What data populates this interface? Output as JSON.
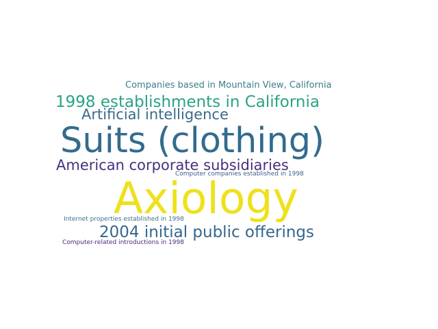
{
  "words": [
    {
      "text": "Companies based in Mountain View, California",
      "color": "#3b7c8c"
    },
    {
      "text": "1998 establishments in California",
      "color": "#2aa285"
    },
    {
      "text": "Artificial intelligence",
      "color": "#3a6b8a"
    },
    {
      "text": "Suits (clothing)",
      "color": "#336b8c"
    },
    {
      "text": "American corporate subsidiaries",
      "color": "#472f7d"
    },
    {
      "text": "Computer companies established in 1998",
      "color": "#3d5d8a"
    },
    {
      "text": "Axiology",
      "color": "#eee11c"
    },
    {
      "text": "Internet properties established in 1998",
      "color": "#3b6f8e"
    },
    {
      "text": "2004 initial public offerings",
      "color": "#35668d"
    },
    {
      "text": "Computer-related introductions in 1998",
      "color": "#4a2a78"
    }
  ]
}
